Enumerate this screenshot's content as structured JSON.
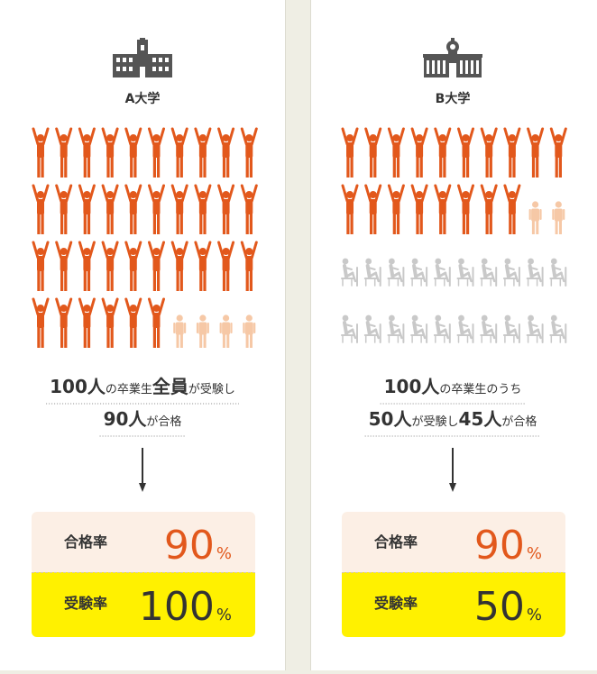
{
  "panels": [
    {
      "name": "A大学",
      "icons": {
        "passed": 36,
        "failed": 4,
        "absent": 0
      },
      "summary": [
        [
          {
            "text": "100人",
            "emphasis": true
          },
          {
            "text": "の卒業生",
            "emphasis": false
          },
          {
            "text": "全員",
            "emphasis": true
          },
          {
            "text": "が受験し",
            "emphasis": false
          }
        ],
        [
          {
            "text": "90人",
            "emphasis": true
          },
          {
            "text": "が合格",
            "emphasis": false
          }
        ]
      ],
      "rates": [
        {
          "label": "合格率",
          "value": 90,
          "unit": "%"
        },
        {
          "label": "受験率",
          "value": 100,
          "unit": "%"
        }
      ]
    },
    {
      "name": "B大学",
      "icons": {
        "passed": 18,
        "failed": 2,
        "absent": 20
      },
      "summary": [
        [
          {
            "text": "100人",
            "emphasis": true
          },
          {
            "text": "の卒業生のうち",
            "emphasis": false
          }
        ],
        [
          {
            "text": "50人",
            "emphasis": true
          },
          {
            "text": "が受験し",
            "emphasis": false
          },
          {
            "text": "45人",
            "emphasis": true
          },
          {
            "text": "が合格",
            "emphasis": false
          }
        ]
      ],
      "rates": [
        {
          "label": "合格率",
          "value": 90,
          "unit": "%"
        },
        {
          "label": "受験率",
          "value": 50,
          "unit": "%"
        }
      ]
    }
  ]
}
